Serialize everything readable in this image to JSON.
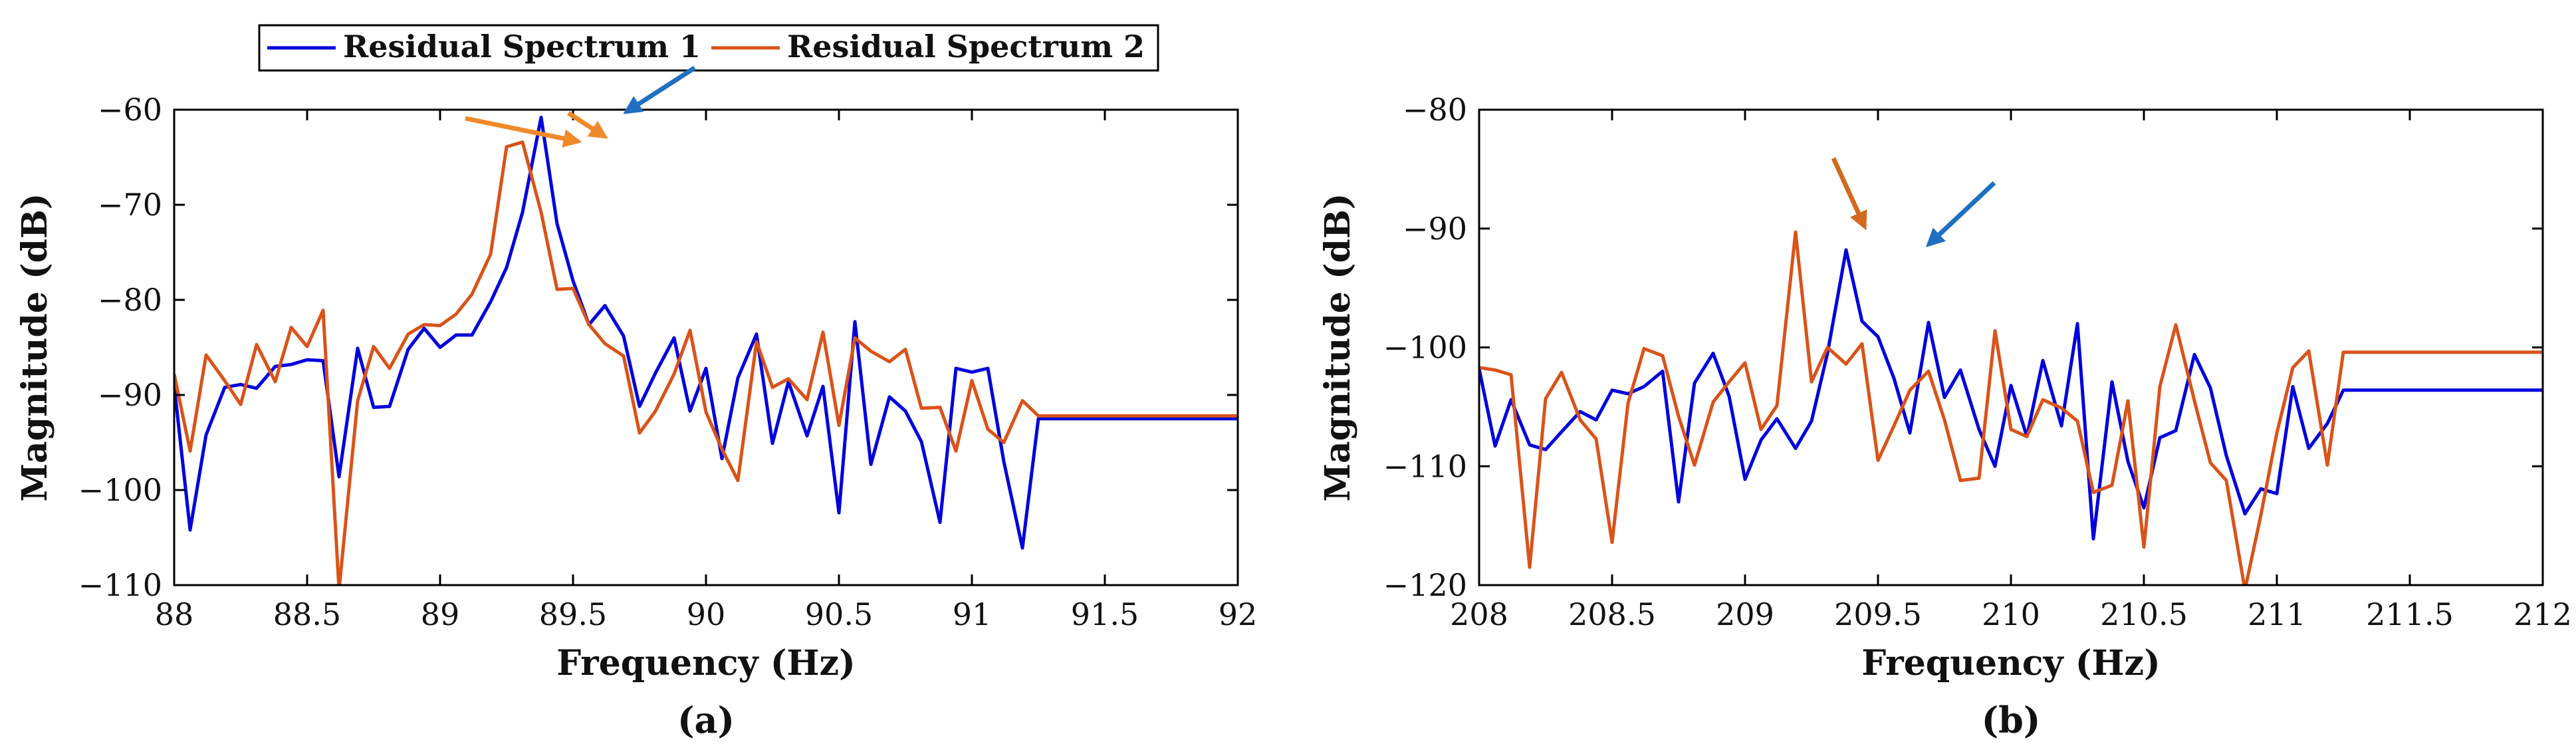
{
  "legend": {
    "entries": [
      {
        "label": "Residual Spectrum 1",
        "color": "#0000DD"
      },
      {
        "label": "Residual Spectrum 2",
        "color": "#D95319"
      }
    ]
  },
  "colors": {
    "axis": "#000000",
    "arrow_orange": "#F0892A",
    "arrow_blue": "#1F6FC2",
    "arrow_dark_orange": "#D2691E"
  },
  "chart_data": [
    {
      "type": "line",
      "panel_label": "(a)",
      "title": "",
      "xlabel": "Frequency (Hz)",
      "ylabel": "Magnitude (dB)",
      "xlim": [
        88,
        92
      ],
      "ylim": [
        -110,
        -60
      ],
      "xticks": [
        88,
        88.5,
        89,
        89.5,
        90,
        90.5,
        91,
        91.5,
        92
      ],
      "xtick_labels": [
        "88",
        "88.5",
        "89",
        "89.5",
        "90",
        "90.5",
        "91",
        "91.5",
        "92"
      ],
      "yticks": [
        -110,
        -100,
        -90,
        -80,
        -70,
        -60
      ],
      "ytick_labels": [
        "−110",
        "−100",
        "−90",
        "−80",
        "−70",
        "−60"
      ],
      "grid": false,
      "arrow_targets": [
        {
          "series": "Residual Spectrum 2",
          "x": 89.52,
          "y": -63.9,
          "style": "orange"
        },
        {
          "series": "Residual Spectrum 2",
          "x": 89.62,
          "y": -63.4,
          "style": "orange"
        },
        {
          "series": "Residual Spectrum 1",
          "x": 89.7,
          "y": -60.8,
          "style": "blue"
        }
      ],
      "series": [
        {
          "name": "Residual Spectrum 1",
          "x": [
            88,
            88.06,
            88.12,
            88.19,
            88.25,
            88.31,
            88.38,
            88.44,
            88.5,
            88.56,
            88.62,
            88.69,
            88.75,
            88.81,
            88.88,
            88.94,
            89,
            89.06,
            89.12,
            89.19,
            89.25,
            89.31,
            89.38,
            89.44,
            89.5,
            89.56,
            89.62,
            89.69,
            89.75,
            89.81,
            89.88,
            89.94,
            90,
            90.06,
            90.12,
            90.19,
            90.25,
            90.31,
            90.38,
            90.44,
            90.5,
            90.56,
            90.62,
            90.69,
            90.75,
            90.81,
            90.88,
            90.94,
            91,
            91.06,
            91.12,
            91.19,
            91.25,
            91.31,
            91.38,
            91.44,
            91.5,
            91.56,
            91.62,
            91.69,
            91.75,
            91.81,
            91.88,
            91.94,
            92
          ],
          "values": [
            -89,
            -104.2,
            -94.2,
            -89.2,
            -88.9,
            -89.3,
            -87,
            -86.8,
            -86.3,
            -86.4,
            -98.6,
            -85.1,
            -91.3,
            -91.2,
            -85.2,
            -83,
            -85,
            -83.7,
            -83.7,
            -80.2,
            -76.6,
            -70.8,
            -60.8,
            -72,
            -78,
            -82.6,
            -80.6,
            -83.8,
            -91.2,
            -87.7,
            -84,
            -91.7,
            -87.2,
            -96.7,
            -88.2,
            -83.6,
            -95.1,
            -88.6,
            -94.3,
            -89.1,
            -102.4,
            -82.3,
            -97.3,
            -90.2,
            -91.7,
            -94.9,
            -103.4,
            -87.2,
            -87.6,
            -87.2,
            -97,
            -106.1,
            -92.5,
            -92.5,
            -92.5,
            -92.5,
            -92.5,
            -92.5,
            -92.5,
            -92.5,
            -92.5,
            -92.5,
            -92.5,
            -92.5,
            -92.5
          ],
          "color": "#0000DD"
        },
        {
          "name": "Residual Spectrum 2",
          "x": [
            88,
            88.06,
            88.12,
            88.19,
            88.25,
            88.31,
            88.38,
            88.44,
            88.5,
            88.56,
            88.62,
            88.69,
            88.75,
            88.81,
            88.88,
            88.94,
            89,
            89.06,
            89.12,
            89.19,
            89.25,
            89.31,
            89.38,
            89.44,
            89.5,
            89.56,
            89.62,
            89.69,
            89.75,
            89.81,
            89.88,
            89.94,
            90,
            90.06,
            90.12,
            90.19,
            90.25,
            90.31,
            90.38,
            90.44,
            90.5,
            90.56,
            90.62,
            90.69,
            90.75,
            90.81,
            90.88,
            90.94,
            91,
            91.06,
            91.12,
            91.19,
            91.25,
            91.31,
            91.38,
            91.44,
            91.5,
            91.56,
            91.62,
            91.69,
            91.75,
            91.81,
            91.88,
            91.94,
            92
          ],
          "values": [
            -87.8,
            -95.9,
            -85.8,
            -88.5,
            -91,
            -84.7,
            -88.6,
            -82.9,
            -84.9,
            -81.1,
            -110.5,
            -90.6,
            -84.9,
            -87.2,
            -83.6,
            -82.6,
            -82.7,
            -81.5,
            -79.4,
            -75.2,
            -63.9,
            -63.4,
            -70.8,
            -78.9,
            -78.8,
            -82.6,
            -84.6,
            -85.9,
            -94,
            -91.7,
            -87.8,
            -83.2,
            -91.8,
            -95.7,
            -99,
            -84.4,
            -89.2,
            -88.3,
            -90.5,
            -83.4,
            -93.2,
            -84,
            -85.4,
            -86.5,
            -85.2,
            -91.4,
            -91.3,
            -95.9,
            -88.5,
            -93.6,
            -95,
            -90.6,
            -92.2,
            -92.2,
            -92.2,
            -92.2,
            -92.2,
            -92.2,
            -92.2,
            -92.2,
            -92.2,
            -92.2,
            -92.2,
            -92.2,
            -92.2
          ],
          "color": "#D95319"
        }
      ]
    },
    {
      "type": "line",
      "panel_label": "(b)",
      "title": "",
      "xlabel": "Frequency (Hz)",
      "ylabel": "Magnitude (dB)",
      "xlim": [
        208,
        212
      ],
      "ylim": [
        -120,
        -80
      ],
      "xticks": [
        208,
        208.5,
        209,
        209.5,
        210,
        210.5,
        211,
        211.5,
        212
      ],
      "xtick_labels": [
        "208",
        "208.5",
        "209",
        "209.5",
        "210",
        "210.5",
        "211",
        "211.5",
        "212"
      ],
      "yticks": [
        -120,
        -110,
        -100,
        -90,
        -80
      ],
      "ytick_labels": [
        "−120",
        "−110",
        "−100",
        "−90",
        "−80"
      ],
      "grid": false,
      "arrow_targets": [
        {
          "series": "Residual Spectrum 2",
          "x": 209.45,
          "y": -90.3,
          "style": "dark_orange"
        },
        {
          "series": "Residual Spectrum 1",
          "x": 209.69,
          "y": -91.8,
          "style": "blue"
        }
      ],
      "series": [
        {
          "name": "Residual Spectrum 1",
          "x": [
            208,
            208.06,
            208.12,
            208.19,
            208.25,
            208.31,
            208.38,
            208.44,
            208.5,
            208.56,
            208.62,
            208.69,
            208.75,
            208.81,
            208.88,
            208.94,
            209,
            209.06,
            209.12,
            209.19,
            209.25,
            209.31,
            209.38,
            209.44,
            209.5,
            209.56,
            209.62,
            209.69,
            209.75,
            209.81,
            209.88,
            209.94,
            210,
            210.06,
            210.12,
            210.19,
            210.25,
            210.31,
            210.38,
            210.44,
            210.5,
            210.56,
            210.62,
            210.69,
            210.75,
            210.81,
            210.88,
            210.94,
            211,
            211.06,
            211.12,
            211.19,
            211.25,
            211.31,
            211.38,
            211.44,
            211.5,
            211.56,
            211.62,
            211.69,
            211.75,
            211.81,
            211.88,
            211.94,
            212
          ],
          "values": [
            -101.8,
            -108.3,
            -104.4,
            -108.2,
            -108.6,
            -107.1,
            -105.4,
            -106.1,
            -103.6,
            -103.9,
            -103.3,
            -102,
            -113,
            -103,
            -100.5,
            -104.1,
            -111.1,
            -107.8,
            -106,
            -108.5,
            -106.2,
            -100.5,
            -91.8,
            -97.8,
            -99.1,
            -102.6,
            -107.2,
            -97.9,
            -104.2,
            -101.9,
            -106.9,
            -110,
            -103.2,
            -107.5,
            -101.1,
            -106.6,
            -98,
            -116.1,
            -102.9,
            -109.6,
            -113.5,
            -107.6,
            -107,
            -100.6,
            -103.4,
            -109.1,
            -114,
            -111.9,
            -112.3,
            -103.3,
            -108.5,
            -106.4,
            -103.6,
            -103.6,
            -103.6,
            -103.6,
            -103.6,
            -103.6,
            -103.6,
            -103.6,
            -103.6,
            -103.6,
            -103.6,
            -103.6,
            -103.6
          ],
          "color": "#0000DD"
        },
        {
          "name": "Residual Spectrum 2",
          "x": [
            208,
            208.06,
            208.12,
            208.19,
            208.25,
            208.31,
            208.38,
            208.44,
            208.5,
            208.56,
            208.62,
            208.69,
            208.75,
            208.81,
            208.88,
            208.94,
            209,
            209.06,
            209.12,
            209.19,
            209.25,
            209.31,
            209.38,
            209.44,
            209.5,
            209.56,
            209.62,
            209.69,
            209.75,
            209.81,
            209.88,
            209.94,
            210,
            210.06,
            210.12,
            210.19,
            210.25,
            210.31,
            210.38,
            210.44,
            210.5,
            210.56,
            210.62,
            210.69,
            210.75,
            210.81,
            210.88,
            210.94,
            211,
            211.06,
            211.12,
            211.19,
            211.25,
            211.31,
            211.38,
            211.44,
            211.5,
            211.56,
            211.62,
            211.69,
            211.75,
            211.81,
            211.88,
            211.94,
            212
          ],
          "values": [
            -101.7,
            -101.9,
            -102.3,
            -118.5,
            -104.3,
            -102.1,
            -106.1,
            -107.7,
            -116.4,
            -104.7,
            -100.1,
            -100.7,
            -105.8,
            -109.9,
            -104.6,
            -102.9,
            -101.3,
            -106.9,
            -104.9,
            -90.3,
            -102.9,
            -100,
            -101.4,
            -99.7,
            -109.5,
            -106.6,
            -103.6,
            -102,
            -106.1,
            -111.2,
            -111,
            -98.6,
            -106.9,
            -107.5,
            -104.4,
            -105.1,
            -106.2,
            -112.2,
            -111.6,
            -104.5,
            -116.8,
            -103.3,
            -98.1,
            -104.5,
            -109.7,
            -111.2,
            -120.4,
            -114.1,
            -107.2,
            -101.7,
            -100.3,
            -109.9,
            -100.4,
            -100.4,
            -100.4,
            -100.4,
            -100.4,
            -100.4,
            -100.4,
            -100.4,
            -100.4,
            -100.4,
            -100.4,
            -100.4,
            -100.4
          ],
          "color": "#D95319"
        }
      ]
    }
  ]
}
